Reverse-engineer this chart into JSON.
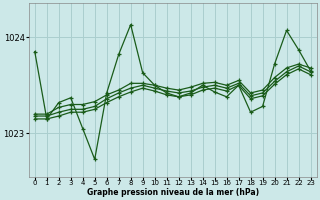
{
  "title": "Graphe pression niveau de la mer (hPa)",
  "bg_color": "#cce8e8",
  "grid_color": "#aacece",
  "line_color": "#1a5c1a",
  "marker_color": "#1a5c1a",
  "xlim": [
    -0.5,
    23.5
  ],
  "ylim": [
    1022.55,
    1024.35
  ],
  "yticks": [
    1023,
    1024
  ],
  "xticks": [
    0,
    1,
    2,
    3,
    4,
    5,
    6,
    7,
    8,
    9,
    10,
    11,
    12,
    13,
    14,
    15,
    16,
    17,
    18,
    19,
    20,
    21,
    22,
    23
  ],
  "series_volatile": [
    1023.85,
    1023.15,
    1023.32,
    1023.37,
    1023.05,
    1022.73,
    1023.42,
    1023.82,
    1024.13,
    1023.63,
    1023.5,
    1023.42,
    1023.38,
    1023.42,
    1023.5,
    1023.43,
    1023.38,
    1023.5,
    1023.22,
    1023.28,
    1023.72,
    1024.07,
    1023.87,
    1023.65
  ],
  "series2": [
    1023.2,
    1023.2,
    1023.27,
    1023.3,
    1023.3,
    1023.33,
    1023.4,
    1023.45,
    1023.52,
    1023.52,
    1023.5,
    1023.47,
    1023.45,
    1023.48,
    1023.52,
    1023.53,
    1023.5,
    1023.55,
    1023.42,
    1023.45,
    1023.58,
    1023.68,
    1023.72,
    1023.68
  ],
  "series3": [
    1023.18,
    1023.18,
    1023.22,
    1023.25,
    1023.25,
    1023.28,
    1023.36,
    1023.42,
    1023.47,
    1023.5,
    1023.47,
    1023.44,
    1023.42,
    1023.44,
    1023.48,
    1023.5,
    1023.47,
    1023.52,
    1023.39,
    1023.42,
    1023.54,
    1023.64,
    1023.7,
    1023.64
  ],
  "series4": [
    1023.15,
    1023.15,
    1023.18,
    1023.22,
    1023.22,
    1023.25,
    1023.32,
    1023.38,
    1023.43,
    1023.47,
    1023.44,
    1023.4,
    1023.38,
    1023.4,
    1023.45,
    1023.47,
    1023.44,
    1023.5,
    1023.36,
    1023.39,
    1023.51,
    1023.61,
    1023.67,
    1023.61
  ]
}
